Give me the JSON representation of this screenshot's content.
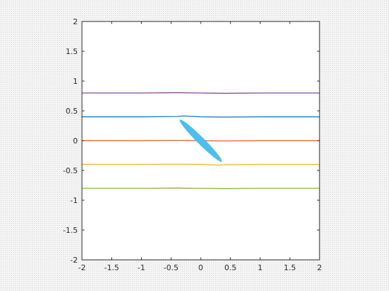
{
  "chart_data": {
    "type": "line",
    "title": "",
    "xlabel": "",
    "ylabel": "",
    "xlim": [
      -2,
      2
    ],
    "ylim": [
      -2,
      2
    ],
    "grid": false,
    "box": true,
    "x_ticks": [
      "-2",
      "-1.5",
      "-1",
      "-0.5",
      "0",
      "0.5",
      "1",
      "1.5",
      "2"
    ],
    "y_ticks": [
      "-2",
      "-1.5",
      "-1",
      "-0.5",
      "0",
      "0.5",
      "1",
      "1.5",
      "2"
    ],
    "series": [
      {
        "color": "#7E2F8E",
        "x": [
          -2,
          -1,
          -0.4,
          0,
          0.4,
          1,
          2
        ],
        "y": [
          0.8,
          0.8,
          0.805,
          0.8,
          0.795,
          0.8,
          0.8
        ]
      },
      {
        "color": "#0072BD",
        "x": [
          -2,
          -1,
          -0.4,
          -0.3,
          0,
          0.4,
          1,
          2
        ],
        "y": [
          0.4,
          0.4,
          0.405,
          0.415,
          0.4,
          0.395,
          0.4,
          0.4
        ]
      },
      {
        "color": "#D95319",
        "x": [
          -2,
          -1,
          -0.4,
          0,
          0.4,
          1,
          2
        ],
        "y": [
          0,
          0,
          0.005,
          0,
          -0.005,
          0,
          0
        ]
      },
      {
        "color": "#EDB120",
        "x": [
          -2,
          -1,
          -0.4,
          0,
          0.3,
          0.4,
          1,
          2
        ],
        "y": [
          -0.4,
          -0.4,
          -0.395,
          -0.4,
          -0.41,
          -0.405,
          -0.4,
          -0.4
        ]
      },
      {
        "color": "#77AC30",
        "x": [
          -2,
          -1,
          -0.4,
          0,
          0.4,
          1,
          2
        ],
        "y": [
          -0.8,
          -0.8,
          -0.795,
          -0.8,
          -0.805,
          -0.8,
          -0.8
        ]
      }
    ],
    "ellipse": {
      "color": "#4DBEEE",
      "center": [
        0,
        0
      ],
      "semi_major": 0.5,
      "semi_minor": 0.06,
      "angle_deg": -45
    }
  }
}
